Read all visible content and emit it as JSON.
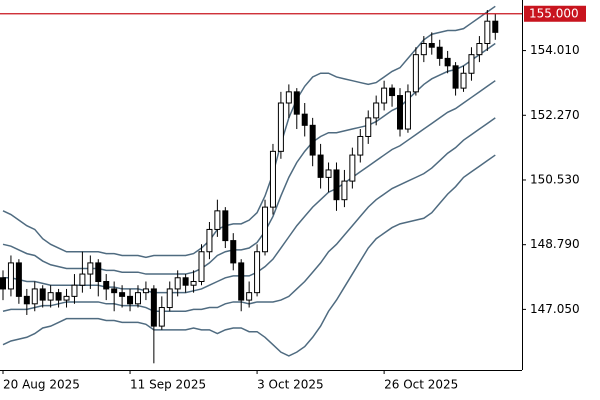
{
  "chart_data": {
    "type": "candlestick",
    "categories": [
      "20 Aug 2025",
      null,
      null,
      null,
      null,
      null,
      null,
      null,
      null,
      null,
      null,
      null,
      null,
      null,
      null,
      null,
      "11 Sep 2025",
      null,
      null,
      null,
      null,
      null,
      null,
      null,
      null,
      null,
      null,
      null,
      null,
      null,
      null,
      null,
      "3 Oct 2025",
      null,
      null,
      null,
      null,
      null,
      null,
      null,
      null,
      null,
      null,
      null,
      null,
      null,
      null,
      null,
      "26 Oct 2025",
      null,
      null,
      null,
      null,
      null,
      null,
      null,
      null,
      null,
      null,
      null,
      null,
      null,
      null
    ],
    "open": [
      147.9,
      147.6,
      148.3,
      147.4,
      147.2,
      147.6,
      147.3,
      147.5,
      147.3,
      147.4,
      147.7,
      148.0,
      148.3,
      147.8,
      147.6,
      147.5,
      147.4,
      147.2,
      147.5,
      147.6,
      146.6,
      147.1,
      147.6,
      147.9,
      147.7,
      147.8,
      148.6,
      149.2,
      149.7,
      148.9,
      148.3,
      147.3,
      147.5,
      148.6,
      149.8,
      151.3,
      152.6,
      152.9,
      152.3,
      152.0,
      151.2,
      150.6,
      150.8,
      150.0,
      150.5,
      151.2,
      151.7,
      152.2,
      152.6,
      153.0,
      152.8,
      151.9,
      152.9,
      153.9,
      154.2,
      154.1,
      153.8,
      153.6,
      153.0,
      153.4,
      153.9,
      154.2,
      154.8
    ],
    "high": [
      148.1,
      148.5,
      148.4,
      147.6,
      147.8,
      147.7,
      147.7,
      147.6,
      147.6,
      148.0,
      148.6,
      148.5,
      148.4,
      148.0,
      147.8,
      147.7,
      147.6,
      147.7,
      147.8,
      147.7,
      147.4,
      147.8,
      148.1,
      148.0,
      148.1,
      148.8,
      149.4,
      150.0,
      149.8,
      149.1,
      148.4,
      147.8,
      148.8,
      150.0,
      151.5,
      152.9,
      153.1,
      153.0,
      152.6,
      152.2,
      151.5,
      151.0,
      151.0,
      150.8,
      151.4,
      151.9,
      152.4,
      152.8,
      153.2,
      153.1,
      153.0,
      153.1,
      154.1,
      154.4,
      154.5,
      154.3,
      154.0,
      153.7,
      153.6,
      154.1,
      154.4,
      155.1,
      155.0
    ],
    "low": [
      147.3,
      147.4,
      147.2,
      146.9,
      147.0,
      147.1,
      147.1,
      147.1,
      147.1,
      147.2,
      147.5,
      147.6,
      147.4,
      147.3,
      147.0,
      147.1,
      147.0,
      147.1,
      147.3,
      145.6,
      146.5,
      147.0,
      147.4,
      147.5,
      147.5,
      147.7,
      148.4,
      149.0,
      148.7,
      148.1,
      147.0,
      147.1,
      147.4,
      148.5,
      149.6,
      151.1,
      152.2,
      151.9,
      151.7,
      150.9,
      150.3,
      150.2,
      149.7,
      149.8,
      150.3,
      151.0,
      151.5,
      152.0,
      152.4,
      152.5,
      151.7,
      151.8,
      152.8,
      153.7,
      153.9,
      153.6,
      153.4,
      152.8,
      152.9,
      153.2,
      153.7,
      154.0,
      154.3
    ],
    "close": [
      147.6,
      148.3,
      147.4,
      147.2,
      147.6,
      147.3,
      147.5,
      147.3,
      147.4,
      147.7,
      148.0,
      148.3,
      147.8,
      147.6,
      147.5,
      147.4,
      147.2,
      147.5,
      147.6,
      146.6,
      147.1,
      147.6,
      147.9,
      147.7,
      147.8,
      148.6,
      149.2,
      149.7,
      148.9,
      148.3,
      147.3,
      147.5,
      148.6,
      149.8,
      151.3,
      152.6,
      152.9,
      152.3,
      152.0,
      151.2,
      150.6,
      150.8,
      150.0,
      150.5,
      151.2,
      151.7,
      152.2,
      152.6,
      153.0,
      152.8,
      151.9,
      152.9,
      153.9,
      154.2,
      154.1,
      153.8,
      153.6,
      153.0,
      153.4,
      153.9,
      154.2,
      154.8,
      154.5
    ],
    "series": [
      {
        "color": "#4f6b80",
        "values": [
          149.7,
          149.6,
          149.45,
          149.3,
          149.2,
          148.95,
          148.8,
          148.7,
          148.6,
          148.6,
          148.6,
          148.6,
          148.6,
          148.55,
          148.55,
          148.5,
          148.5,
          148.5,
          148.45,
          148.5,
          148.5,
          148.5,
          148.5,
          148.5,
          148.55,
          148.7,
          148.9,
          149.2,
          149.3,
          149.35,
          149.35,
          149.45,
          149.65,
          150.1,
          150.7,
          151.5,
          152.2,
          152.7,
          153.05,
          153.3,
          153.4,
          153.4,
          153.3,
          153.25,
          153.2,
          153.15,
          153.1,
          153.15,
          153.3,
          153.45,
          153.55,
          153.8,
          154.05,
          154.3,
          154.45,
          154.5,
          154.55,
          154.55,
          154.6,
          154.75,
          154.9,
          155.05,
          155.2
        ]
      },
      {
        "color": "#4f6b80",
        "values": [
          148.8,
          148.75,
          148.65,
          148.55,
          148.5,
          148.35,
          148.25,
          148.2,
          148.15,
          148.15,
          148.15,
          148.15,
          148.15,
          148.1,
          148.1,
          148.05,
          148.05,
          148.05,
          148.0,
          148.0,
          148.0,
          148.0,
          148.0,
          148.0,
          148.05,
          148.15,
          148.3,
          148.5,
          148.6,
          148.65,
          148.65,
          148.7,
          148.85,
          149.15,
          149.55,
          150.1,
          150.6,
          151.0,
          151.3,
          151.55,
          151.7,
          151.8,
          151.8,
          151.85,
          151.9,
          151.95,
          152.0,
          152.1,
          152.25,
          152.4,
          152.5,
          152.7,
          152.9,
          153.1,
          153.25,
          153.35,
          153.45,
          153.5,
          153.6,
          153.75,
          153.9,
          154.05,
          154.2
        ]
      },
      {
        "color": "#4f6b80",
        "values": [
          147.9,
          147.9,
          147.85,
          147.8,
          147.8,
          147.75,
          147.7,
          147.7,
          147.7,
          147.7,
          147.7,
          147.7,
          147.7,
          147.65,
          147.65,
          147.6,
          147.6,
          147.6,
          147.55,
          147.5,
          147.5,
          147.5,
          147.5,
          147.5,
          147.55,
          147.6,
          147.7,
          147.8,
          147.9,
          147.95,
          147.95,
          147.95,
          148.05,
          148.2,
          148.4,
          148.7,
          149.0,
          149.3,
          149.55,
          149.8,
          150.0,
          150.2,
          150.3,
          150.45,
          150.6,
          150.75,
          150.9,
          151.05,
          151.2,
          151.35,
          151.45,
          151.6,
          151.75,
          151.9,
          152.05,
          152.2,
          152.35,
          152.45,
          152.6,
          152.75,
          152.9,
          153.05,
          153.2
        ]
      },
      {
        "color": "#4f6b80",
        "values": [
          147.0,
          147.05,
          147.05,
          147.05,
          147.1,
          147.15,
          147.15,
          147.2,
          147.25,
          147.25,
          147.25,
          147.25,
          147.25,
          147.2,
          147.2,
          147.15,
          147.15,
          147.15,
          147.1,
          147.0,
          147.0,
          147.0,
          147.0,
          147.0,
          147.05,
          147.05,
          147.1,
          147.1,
          147.2,
          147.25,
          147.25,
          147.2,
          147.25,
          147.25,
          147.25,
          147.3,
          147.4,
          147.6,
          147.8,
          148.05,
          148.3,
          148.6,
          148.8,
          149.05,
          149.3,
          149.55,
          149.8,
          150.0,
          150.15,
          150.3,
          150.4,
          150.5,
          150.6,
          150.7,
          150.85,
          151.05,
          151.25,
          151.4,
          151.6,
          151.75,
          151.9,
          152.05,
          152.2
        ]
      },
      {
        "color": "#4f6b80",
        "values": [
          146.1,
          146.2,
          146.25,
          146.3,
          146.4,
          146.55,
          146.6,
          146.7,
          146.8,
          146.8,
          146.8,
          146.8,
          146.8,
          146.75,
          146.75,
          146.7,
          146.7,
          146.7,
          146.65,
          146.5,
          146.5,
          146.5,
          146.5,
          146.5,
          146.55,
          146.5,
          146.5,
          146.4,
          146.5,
          146.55,
          146.55,
          146.45,
          146.45,
          146.3,
          146.1,
          145.9,
          145.8,
          145.9,
          146.05,
          146.3,
          146.6,
          147.0,
          147.3,
          147.65,
          148.0,
          148.35,
          148.7,
          148.95,
          149.1,
          149.25,
          149.35,
          149.4,
          149.45,
          149.5,
          149.65,
          149.9,
          150.15,
          150.35,
          150.6,
          150.75,
          150.9,
          151.05,
          151.2
        ]
      }
    ],
    "price_line": {
      "value": 155,
      "label": "155.000",
      "color": "#c8141e"
    },
    "ylim": [
      145.42,
      155.37
    ],
    "yticks": [
      {
        "value": 147.05,
        "label": "147.050"
      },
      {
        "value": 148.79,
        "label": "148.790"
      },
      {
        "value": 150.53,
        "label": "150.530"
      },
      {
        "value": 152.27,
        "label": "152.270"
      },
      {
        "value": 154.01,
        "label": "154.010"
      }
    ],
    "grid": false
  }
}
